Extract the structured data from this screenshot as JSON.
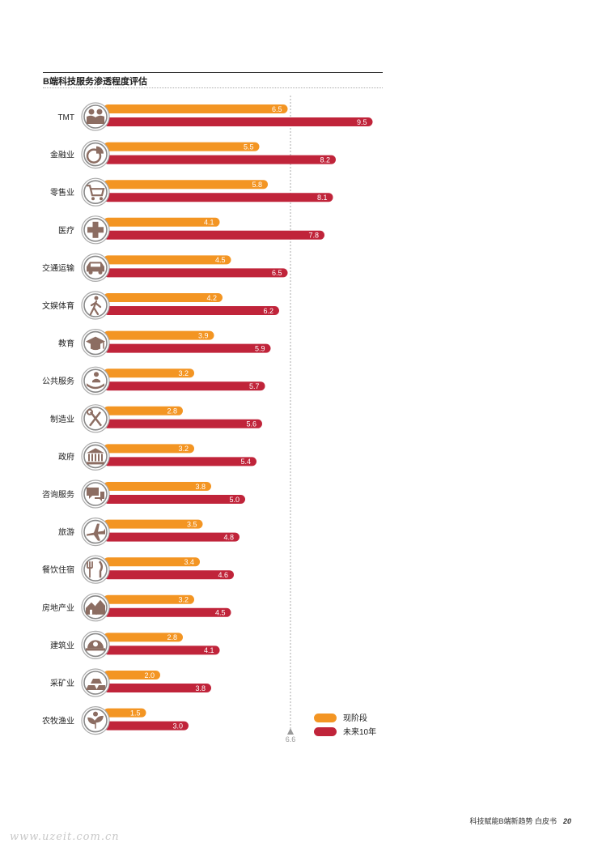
{
  "header": {
    "title": "B端科技服务渗透程度评估"
  },
  "footer": {
    "text": "科技赋能B端新趋势 白皮书",
    "page": "20"
  },
  "watermark": "www.uzeit.com.cn",
  "colors": {
    "current": "#f39523",
    "future": "#c0243a",
    "icon": "#8c6d62",
    "ref_line": "#aaaaaa"
  },
  "chart_data": {
    "type": "bar",
    "orientation": "horizontal",
    "title": "B端科技服务渗透程度评估",
    "categories": [
      "TMT",
      "金融业",
      "零售业",
      "医疗",
      "交通运输",
      "文娱体育",
      "教育",
      "公共服务",
      "制造业",
      "政府",
      "咨询服务",
      "旅游",
      "餐饮住宿",
      "房地产业",
      "建筑业",
      "采矿业",
      "农牧渔业"
    ],
    "icons": [
      "people-icon",
      "pie-chart-icon",
      "shopping-cart-icon",
      "medical-cross-icon",
      "car-icon",
      "walking-person-icon",
      "graduation-cap-icon",
      "hand-person-icon",
      "tools-icon",
      "government-building-icon",
      "chat-bubbles-icon",
      "airplane-icon",
      "fork-knife-icon",
      "houses-icon",
      "helmet-icon",
      "gold-bars-icon",
      "plant-sun-icon"
    ],
    "series": [
      {
        "name": "现阶段",
        "values": [
          6.5,
          5.5,
          5.8,
          4.1,
          4.5,
          4.2,
          3.9,
          3.2,
          2.8,
          3.2,
          3.8,
          3.5,
          3.4,
          3.2,
          2.8,
          2.0,
          1.5
        ]
      },
      {
        "name": "未来10年",
        "values": [
          9.5,
          8.2,
          8.1,
          7.8,
          6.5,
          6.2,
          5.9,
          5.7,
          5.6,
          5.4,
          5.0,
          4.8,
          4.6,
          4.5,
          4.1,
          3.8,
          3.0
        ]
      }
    ],
    "reference_line": {
      "value": 6.6,
      "label": "6.6"
    },
    "xlim": [
      0,
      10
    ],
    "legend": "bottom-right",
    "grid": false
  }
}
